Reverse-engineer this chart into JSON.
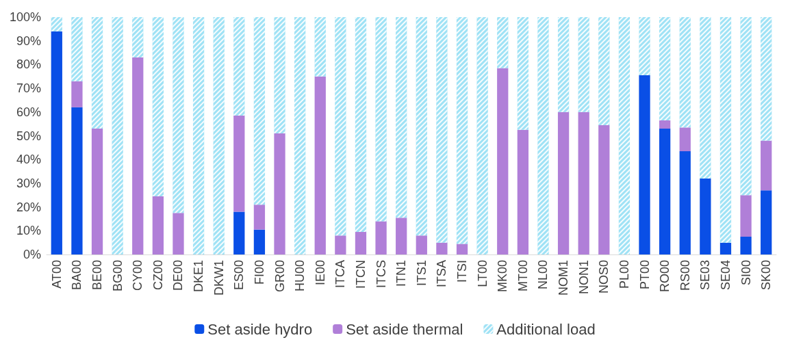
{
  "chart_data": {
    "type": "bar",
    "stacked": true,
    "legend": "bottom",
    "grid": false,
    "categories": [
      "AT00",
      "BA00",
      "BE00",
      "BG00",
      "CY00",
      "CZ00",
      "DE00",
      "DKE1",
      "DKW1",
      "ES00",
      "FI00",
      "GR00",
      "HU00",
      "IE00",
      "ITCA",
      "ITCN",
      "ITCS",
      "ITN1",
      "ITS1",
      "ITSA",
      "ITSI",
      "LT00",
      "MK00",
      "MT00",
      "NL00",
      "NOM1",
      "NON1",
      "NOS0",
      "PL00",
      "PT00",
      "RO00",
      "RS00",
      "SE03",
      "SE04",
      "SI00",
      "SK00"
    ],
    "ylim": [
      0,
      100
    ],
    "yticks": [
      {
        "value": 0,
        "label": "0%"
      },
      {
        "value": 10,
        "label": "10%"
      },
      {
        "value": 20,
        "label": "20%"
      },
      {
        "value": 30,
        "label": "30%"
      },
      {
        "value": 40,
        "label": "40%"
      },
      {
        "value": 50,
        "label": "50%"
      },
      {
        "value": 60,
        "label": "60%"
      },
      {
        "value": 70,
        "label": "70%"
      },
      {
        "value": 80,
        "label": "80%"
      },
      {
        "value": 90,
        "label": "90%"
      },
      {
        "value": 100,
        "label": "100%"
      }
    ],
    "series": [
      {
        "name": "Set aside hydro",
        "color": "#0a4fe6",
        "values": [
          94,
          62,
          0,
          0,
          0,
          0,
          0,
          0,
          0,
          18,
          10.5,
          0,
          0,
          0,
          0,
          0,
          0,
          0,
          0,
          0,
          0,
          0,
          0,
          0,
          0,
          0,
          0,
          0,
          0,
          75.5,
          53,
          43.5,
          32,
          5,
          7.5,
          27
        ]
      },
      {
        "name": "Set aside thermal",
        "color": "#b07fd8",
        "values": [
          0,
          11,
          53,
          0,
          83,
          24.5,
          17.5,
          0,
          0,
          40.5,
          10.5,
          51,
          0,
          75,
          8,
          9.5,
          14,
          15.5,
          8,
          5,
          4.5,
          0,
          78.5,
          52.5,
          0,
          60,
          60,
          54.5,
          0,
          0,
          3.5,
          10,
          0,
          0,
          17.5,
          21
        ]
      },
      {
        "name": "Additional load",
        "color": "#9fe2f5",
        "values": [
          6,
          27,
          47,
          100,
          17,
          75.5,
          82.5,
          100,
          100,
          41.5,
          79,
          49,
          100,
          25,
          92,
          90.5,
          86,
          84.5,
          92,
          95,
          95.5,
          100,
          21.5,
          47.5,
          100,
          40,
          40,
          45.5,
          100,
          24.5,
          43.5,
          46.5,
          68,
          95,
          75,
          52
        ]
      }
    ]
  }
}
